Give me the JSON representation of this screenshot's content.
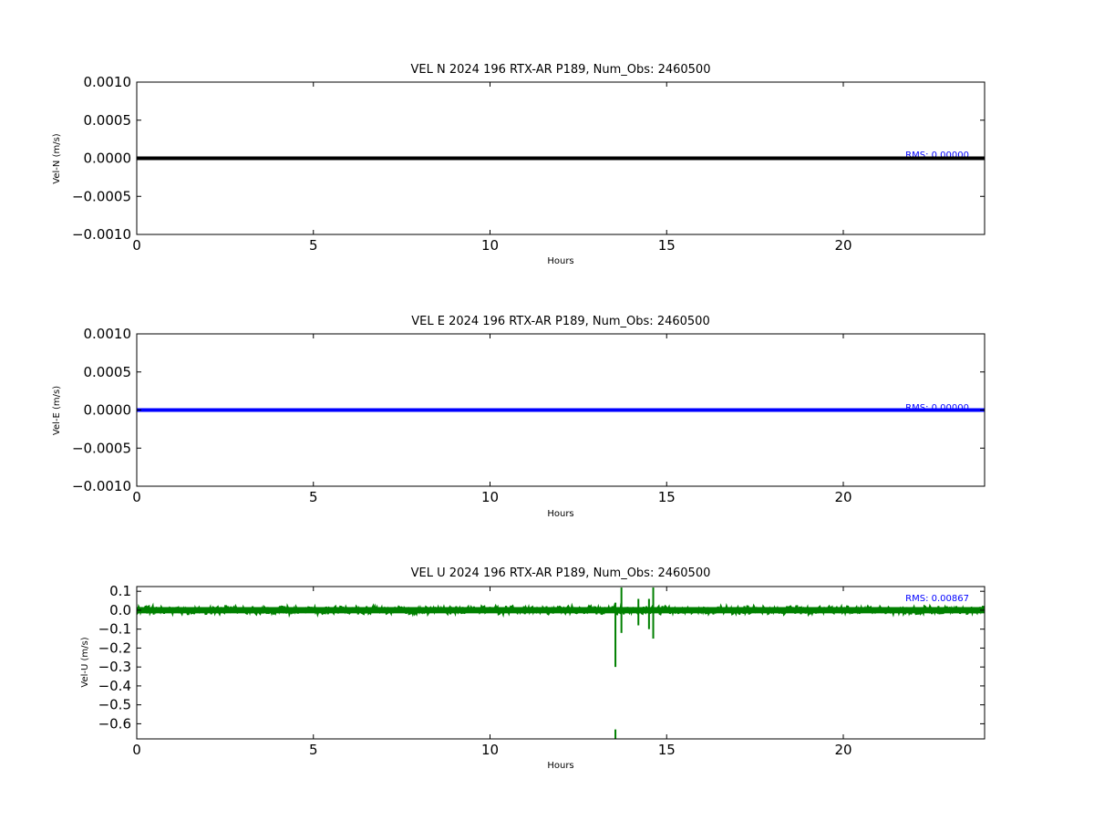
{
  "chart_data": [
    {
      "type": "line",
      "title": "VEL N 2024 196 RTX-AR  P189, Num_Obs: 2460500",
      "xlabel": "Hours",
      "ylabel": "Vel-N (m/s)",
      "xlim": [
        0,
        24
      ],
      "ylim": [
        -0.001,
        0.001
      ],
      "xticks": [
        0,
        5,
        10,
        15,
        20
      ],
      "xtick_labels": [
        "0",
        "5",
        "10",
        "15",
        "20"
      ],
      "yticks": [
        0.001,
        0.0005,
        0.0,
        -0.0005,
        -0.001
      ],
      "ytick_labels": [
        "0.0010",
        "0.0005",
        "0.0000",
        "−0.0005",
        "−0.0010"
      ],
      "grid": false,
      "series": [
        {
          "color": "#000000",
          "x": [
            0,
            24
          ],
          "y": [
            0,
            0
          ]
        }
      ],
      "annotation": "RMS:  0.00000",
      "annotation_color": "#0000ff"
    },
    {
      "type": "line",
      "title": "VEL E 2024 196 RTX-AR  P189, Num_Obs: 2460500",
      "xlabel": "Hours",
      "ylabel": "Vel-E (m/s)",
      "xlim": [
        0,
        24
      ],
      "ylim": [
        -0.001,
        0.001
      ],
      "xticks": [
        0,
        5,
        10,
        15,
        20
      ],
      "xtick_labels": [
        "0",
        "5",
        "10",
        "15",
        "20"
      ],
      "yticks": [
        0.001,
        0.0005,
        0.0,
        -0.0005,
        -0.001
      ],
      "ytick_labels": [
        "0.0010",
        "0.0005",
        "0.0000",
        "−0.0005",
        "−0.0010"
      ],
      "grid": false,
      "series": [
        {
          "color": "#0000ff",
          "x": [
            0,
            24
          ],
          "y": [
            0,
            0
          ]
        }
      ],
      "annotation": "RMS:  0.00000",
      "annotation_color": "#0000ff"
    },
    {
      "type": "line",
      "title": "VEL U 2024 196 RTX-AR  P189, Num_Obs: 2460500",
      "xlabel": "Hours",
      "ylabel": "Vel-U (m/s)",
      "xlim": [
        0,
        24
      ],
      "ylim": [
        -0.68,
        0.125
      ],
      "xticks": [
        0,
        5,
        10,
        15,
        20
      ],
      "xtick_labels": [
        "0",
        "5",
        "10",
        "15",
        "20"
      ],
      "yticks": [
        0.1,
        0.0,
        -0.1,
        -0.2,
        -0.3,
        -0.4,
        -0.5,
        -0.6
      ],
      "ytick_labels": [
        "0.1",
        "0.0",
        "−0.1",
        "−0.2",
        "−0.3",
        "−0.4",
        "−0.5",
        "−0.6"
      ],
      "grid": false,
      "series": [
        {
          "color": "#008000",
          "noise_band": {
            "x_start": 0,
            "x_end": 24,
            "center": 0.0,
            "half_width": 0.03
          },
          "spikes": [
            {
              "x": 13.55,
              "y_min": -0.3,
              "y_max": 0.04
            },
            {
              "x": 13.55,
              "y_min": -0.68,
              "y_max": -0.63
            },
            {
              "x": 13.72,
              "y_min": -0.12,
              "y_max": 0.12
            },
            {
              "x": 14.2,
              "y_min": -0.08,
              "y_max": 0.06
            },
            {
              "x": 14.5,
              "y_min": -0.1,
              "y_max": 0.06
            },
            {
              "x": 14.62,
              "y_min": -0.15,
              "y_max": 0.12
            }
          ]
        }
      ],
      "annotation": "RMS:  0.00867",
      "annotation_color": "#0000ff"
    }
  ]
}
